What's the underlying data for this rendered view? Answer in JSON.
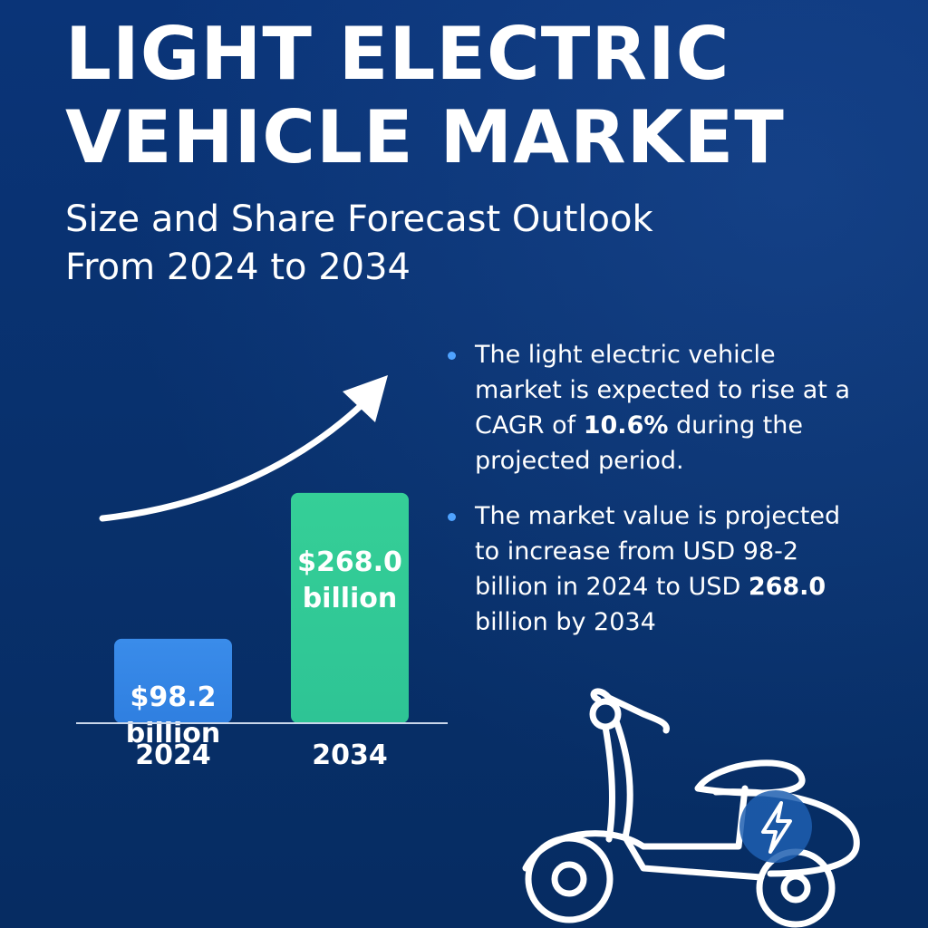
{
  "header": {
    "title": "LIGHT ELECTRIC\nVEHICLE MARKET",
    "subtitle": "Size and Share Forecast Outlook\nFrom 2024 to 2034"
  },
  "bullets": [
    {
      "pre": "The light electric vehicle market is expected to rise at a CAGR of ",
      "bold": "10.6%",
      "post": " during the projected period."
    },
    {
      "pre": "The market value is projected to increase from USD 98-2 billion in 2024 to USD ",
      "bold": "268.0",
      "post": " billion by 2034"
    }
  ],
  "chart_data": {
    "type": "bar",
    "categories": [
      "2024",
      "2034"
    ],
    "values": [
      98.2,
      268.0
    ],
    "value_labels": [
      "$98.2\nbillion",
      "$268.0\nbillion"
    ],
    "ylim": [
      0,
      290
    ],
    "title": "",
    "xlabel": "",
    "ylabel": "",
    "grid": false,
    "trend_arrow": true
  },
  "colors": {
    "background": "#08306b",
    "bar_2024": "#2f7fe0",
    "bar_2034": "#2ec495",
    "bullet_dot": "#4fa3ff",
    "bolt_circle": "#1f5fb0"
  },
  "icons": [
    "scooter-icon",
    "lightning-bolt-icon",
    "trend-arrow-icon"
  ]
}
